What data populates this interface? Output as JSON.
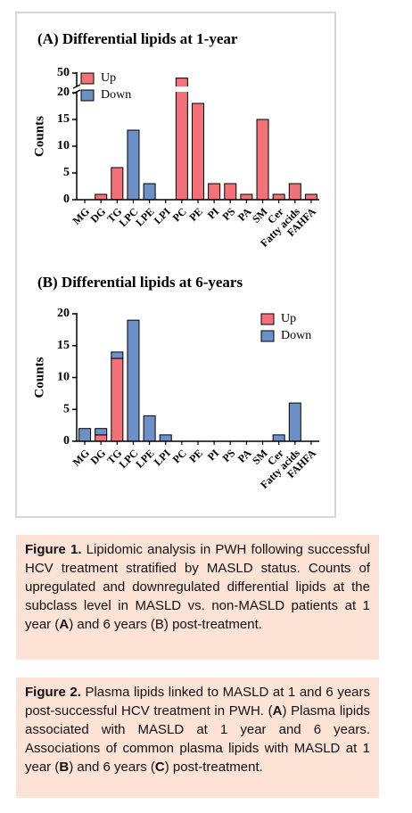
{
  "chart_data": [
    {
      "type": "bar",
      "stacked": true,
      "title": "(A) Differential lipids at 1-year",
      "ylabel": "Counts",
      "categories": [
        "MG",
        "DG",
        "TG",
        "LPC",
        "LPE",
        "LPI",
        "PC",
        "PE",
        "PI",
        "PS",
        "PA",
        "SM",
        "Cer",
        "Fatty acids",
        "FAHFA"
      ],
      "series": [
        {
          "name": "Up",
          "color": "#f3727a",
          "values": [
            0,
            1,
            6,
            0,
            0,
            0,
            48,
            18,
            3,
            3,
            1,
            15,
            1,
            3,
            1
          ]
        },
        {
          "name": "Down",
          "color": "#6e90c8",
          "values": [
            0,
            0,
            0,
            13,
            3,
            0,
            0,
            0,
            0,
            0,
            0,
            0,
            0,
            0,
            0
          ]
        }
      ],
      "ylim": [
        0,
        50
      ],
      "ybreak": [
        20,
        45
      ],
      "yticks": [
        0,
        5,
        10,
        15,
        20,
        50
      ],
      "legend": "upper left"
    },
    {
      "type": "bar",
      "stacked": true,
      "title": "(B) Differential lipids at 6-years",
      "ylabel": "Counts",
      "categories": [
        "MG",
        "DG",
        "TG",
        "LPC",
        "LPE",
        "LPI",
        "PC",
        "PE",
        "PI",
        "PS",
        "PA",
        "SM",
        "Cer",
        "Fatty acids",
        "FAHFA"
      ],
      "series": [
        {
          "name": "Up",
          "color": "#f3727a",
          "values": [
            0,
            1,
            13,
            0,
            0,
            0,
            0,
            0,
            0,
            0,
            0,
            0,
            0,
            0,
            0
          ]
        },
        {
          "name": "Down",
          "color": "#6e90c8",
          "values": [
            2,
            1,
            1,
            19,
            4,
            1,
            0,
            0,
            0,
            0,
            0,
            0,
            1,
            6,
            0
          ]
        }
      ],
      "ylim": [
        0,
        20
      ],
      "yticks": [
        0,
        5,
        10,
        15,
        20
      ],
      "legend": "upper right"
    }
  ],
  "captions": [
    {
      "runs": [
        {
          "text": "Figure 1.",
          "bold": true
        },
        {
          "text": " Lipidomic analysis in PWH following successful HCV treatment stratified by MASLD status. Counts of upregulated and downregulated differential lipids at the subclass level in MASLD vs. non-MASLD patients at 1 year ("
        },
        {
          "text": "A",
          "bold": true
        },
        {
          "text": ") and 6 years (B) post-treatment."
        }
      ]
    },
    {
      "runs": [
        {
          "text": "Figure 2.",
          "bold": true
        },
        {
          "text": " Plasma lipids linked to MASLD at 1 and 6 years post-successful HCV treatment in PWH. ("
        },
        {
          "text": "A",
          "bold": true
        },
        {
          "text": ") Plasma lipids associated with MASLD at 1 year and 6 years. Associations of common plasma lipids with MASLD at 1 year ("
        },
        {
          "text": "B",
          "bold": true
        },
        {
          "text": ") and 6 years ("
        },
        {
          "text": "C",
          "bold": true
        },
        {
          "text": ") post-treatment."
        }
      ]
    }
  ]
}
